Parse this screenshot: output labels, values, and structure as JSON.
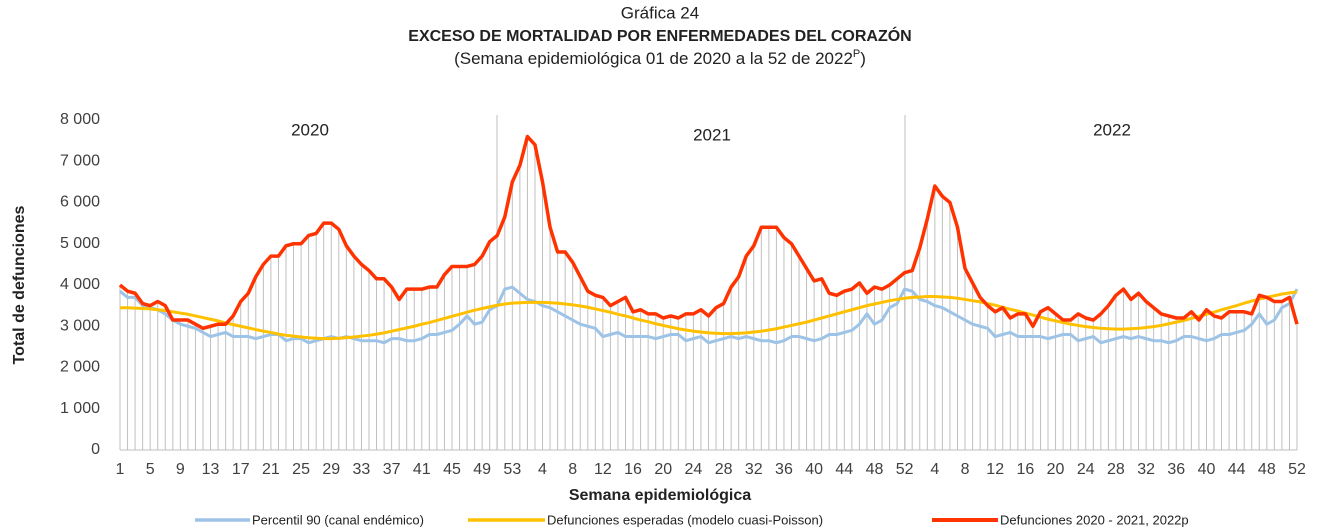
{
  "chart_data": {
    "type": "line",
    "title_top": "Gráfica 24",
    "title": "EXCESO DE MORTALIDAD POR ENFERMEDADES DEL CORAZÓN",
    "subtitle": "(Semana epidemiológica 01 de 2020 a la 52 de 2022",
    "subtitle_superscript": "P",
    "subtitle_end": ")",
    "x_label": "Semana epidemiológica",
    "y_label": "Total de defunciones",
    "annotations": [
      "2020",
      "2021",
      "2022"
    ],
    "categories": [
      "1",
      null,
      null,
      null,
      "5",
      null,
      null,
      null,
      "9",
      null,
      null,
      null,
      "13",
      null,
      null,
      null,
      "17",
      null,
      null,
      null,
      "21",
      null,
      null,
      null,
      "25",
      null,
      null,
      null,
      "29",
      null,
      null,
      null,
      "33",
      null,
      null,
      null,
      "37",
      null,
      null,
      null,
      "41",
      null,
      null,
      null,
      "45",
      null,
      null,
      null,
      "49",
      null,
      null,
      null,
      "53",
      null,
      null,
      null,
      "4",
      null,
      null,
      null,
      "8",
      null,
      null,
      null,
      "12",
      null,
      null,
      null,
      "16",
      null,
      null,
      null,
      "20",
      null,
      null,
      null,
      "24",
      null,
      null,
      null,
      "28",
      null,
      null,
      null,
      "32",
      null,
      null,
      null,
      "36",
      null,
      null,
      null,
      "40",
      null,
      null,
      null,
      "44",
      null,
      null,
      null,
      "48",
      null,
      null,
      null,
      "52",
      null,
      null,
      null,
      "4",
      null,
      null,
      null,
      "8",
      null,
      null,
      null,
      "12",
      null,
      null,
      null,
      "16",
      null,
      null,
      null,
      "20",
      null,
      null,
      null,
      "24",
      null,
      null,
      null,
      "28",
      null,
      null,
      null,
      "32",
      null,
      null,
      null,
      "36",
      null,
      null,
      null,
      "40",
      null,
      null,
      null,
      "44",
      null,
      null,
      null,
      "48",
      null,
      null,
      null,
      "52"
    ],
    "ylim": [
      0,
      8000
    ],
    "yticks": [
      0,
      {
        "value": 1000,
        "label": "1 000"
      },
      {
        "value": 2000,
        "label": "2 000"
      },
      {
        "value": 3000,
        "label": "3 000"
      },
      {
        "value": 4000,
        "label": "4 000"
      },
      {
        "value": 5000,
        "label": "5 000"
      },
      {
        "value": 6000,
        "label": "6 000"
      },
      {
        "value": 7000,
        "label": "7 000"
      },
      {
        "value": 8000,
        "label": "8 000"
      }
    ],
    "drop_line_color": "#bfbfbf",
    "series": [
      {
        "name": "Percentil 90 (canal endémico)",
        "color": "#9dc3e6",
        "values": [
          3850,
          3700,
          3700,
          3500,
          3450,
          3400,
          3300,
          3150,
          3050,
          3000,
          2950,
          2850,
          2750,
          2800,
          2850,
          2750,
          2750,
          2750,
          2700,
          2750,
          2800,
          2800,
          2650,
          2700,
          2700,
          2600,
          2650,
          2700,
          2750,
          2700,
          2750,
          2700,
          2650,
          2650,
          2650,
          2600,
          2700,
          2700,
          2650,
          2650,
          2700,
          2800,
          2800,
          2850,
          2900,
          3050,
          3250,
          3050,
          3100,
          3400,
          3500,
          3900,
          3950,
          3800,
          3650,
          3600,
          3500,
          3450,
          3350,
          3250,
          3150,
          3050,
          3000,
          2950,
          2750,
          2800,
          2850,
          2750,
          2750,
          2750,
          2750,
          2700,
          2750,
          2800,
          2800,
          2650,
          2700,
          2750,
          2600,
          2650,
          2700,
          2750,
          2700,
          2750,
          2700,
          2650,
          2650,
          2600,
          2650,
          2750,
          2750,
          2700,
          2650,
          2700,
          2800,
          2800,
          2850,
          2900,
          3050,
          3300,
          3050,
          3150,
          3450,
          3550,
          3900,
          3850,
          3650,
          3600,
          3500,
          3450,
          3350,
          3250,
          3150,
          3050,
          3000,
          2950,
          2750,
          2800,
          2850,
          2750,
          2750,
          2750,
          2750,
          2700,
          2750,
          2800,
          2800,
          2650,
          2700,
          2750,
          2600,
          2650,
          2700,
          2750,
          2700,
          2750,
          2700,
          2650,
          2650,
          2600,
          2650,
          2750,
          2750,
          2700,
          2650,
          2700,
          2800,
          2800,
          2850,
          2900,
          3050,
          3300,
          3050,
          3150,
          3450,
          3550,
          3900
        ]
      },
      {
        "name": "Defunciones esperadas (modelo cuasi-Poisson)",
        "color": "#ffc000",
        "values": [
          3450,
          3450,
          3440,
          3430,
          3420,
          3400,
          3380,
          3350,
          3320,
          3290,
          3250,
          3210,
          3170,
          3130,
          3080,
          3040,
          3000,
          2960,
          2920,
          2880,
          2850,
          2810,
          2780,
          2760,
          2740,
          2720,
          2710,
          2700,
          2700,
          2710,
          2720,
          2740,
          2760,
          2780,
          2810,
          2840,
          2880,
          2920,
          2960,
          3000,
          3050,
          3090,
          3140,
          3190,
          3240,
          3290,
          3340,
          3390,
          3430,
          3470,
          3510,
          3540,
          3560,
          3570,
          3580,
          3580,
          3580,
          3570,
          3560,
          3540,
          3520,
          3490,
          3460,
          3420,
          3380,
          3340,
          3290,
          3250,
          3200,
          3150,
          3110,
          3060,
          3020,
          2980,
          2940,
          2910,
          2880,
          2860,
          2840,
          2830,
          2820,
          2820,
          2830,
          2840,
          2860,
          2880,
          2910,
          2940,
          2980,
          3020,
          3060,
          3100,
          3150,
          3200,
          3250,
          3300,
          3350,
          3400,
          3450,
          3500,
          3540,
          3580,
          3620,
          3650,
          3680,
          3700,
          3710,
          3720,
          3720,
          3710,
          3700,
          3680,
          3650,
          3620,
          3590,
          3550,
          3510,
          3460,
          3410,
          3370,
          3320,
          3270,
          3220,
          3170,
          3130,
          3090,
          3050,
          3020,
          2990,
          2970,
          2950,
          2940,
          2930,
          2930,
          2940,
          2950,
          2970,
          2990,
          3020,
          3060,
          3100,
          3140,
          3190,
          3240,
          3290,
          3340,
          3400,
          3450,
          3500,
          3560,
          3610,
          3660,
          3700,
          3740,
          3780,
          3810,
          3830
        ]
      },
      {
        "name": "Defunciones 2020 - 2021, 2022p",
        "color": "#ff3300",
        "values": [
          4000,
          3850,
          3800,
          3550,
          3500,
          3600,
          3500,
          3150,
          3150,
          3150,
          3050,
          2950,
          3000,
          3050,
          3050,
          3250,
          3600,
          3800,
          4200,
          4500,
          4700,
          4700,
          4950,
          5000,
          5000,
          5200,
          5250,
          5500,
          5500,
          5350,
          4950,
          4700,
          4500,
          4350,
          4150,
          4150,
          3950,
          3650,
          3900,
          3900,
          3900,
          3950,
          3950,
          4250,
          4450,
          4450,
          4450,
          4500,
          4700,
          5050,
          5200,
          5650,
          6500,
          6900,
          7600,
          7400,
          6500,
          5400,
          4800,
          4800,
          4550,
          4200,
          3850,
          3750,
          3700,
          3500,
          3600,
          3700,
          3350,
          3400,
          3300,
          3300,
          3200,
          3250,
          3200,
          3300,
          3300,
          3400,
          3250,
          3450,
          3550,
          3950,
          4200,
          4700,
          4950,
          5400,
          5400,
          5400,
          5150,
          5000,
          4700,
          4400,
          4100,
          4150,
          3800,
          3750,
          3850,
          3900,
          4050,
          3800,
          3950,
          3900,
          4000,
          4150,
          4300,
          4350,
          4900,
          5600,
          6400,
          6150,
          6000,
          5400,
          4400,
          4050,
          3700,
          3500,
          3350,
          3450,
          3200,
          3300,
          3300,
          3000,
          3350,
          3450,
          3300,
          3150,
          3150,
          3300,
          3200,
          3150,
          3300,
          3500,
          3750,
          3900,
          3650,
          3800,
          3600,
          3450,
          3300,
          3250,
          3200,
          3200,
          3350,
          3150,
          3400,
          3250,
          3200,
          3350,
          3350,
          3350,
          3300,
          3750,
          3700,
          3600,
          3600,
          3700,
          3050
        ]
      }
    ]
  }
}
